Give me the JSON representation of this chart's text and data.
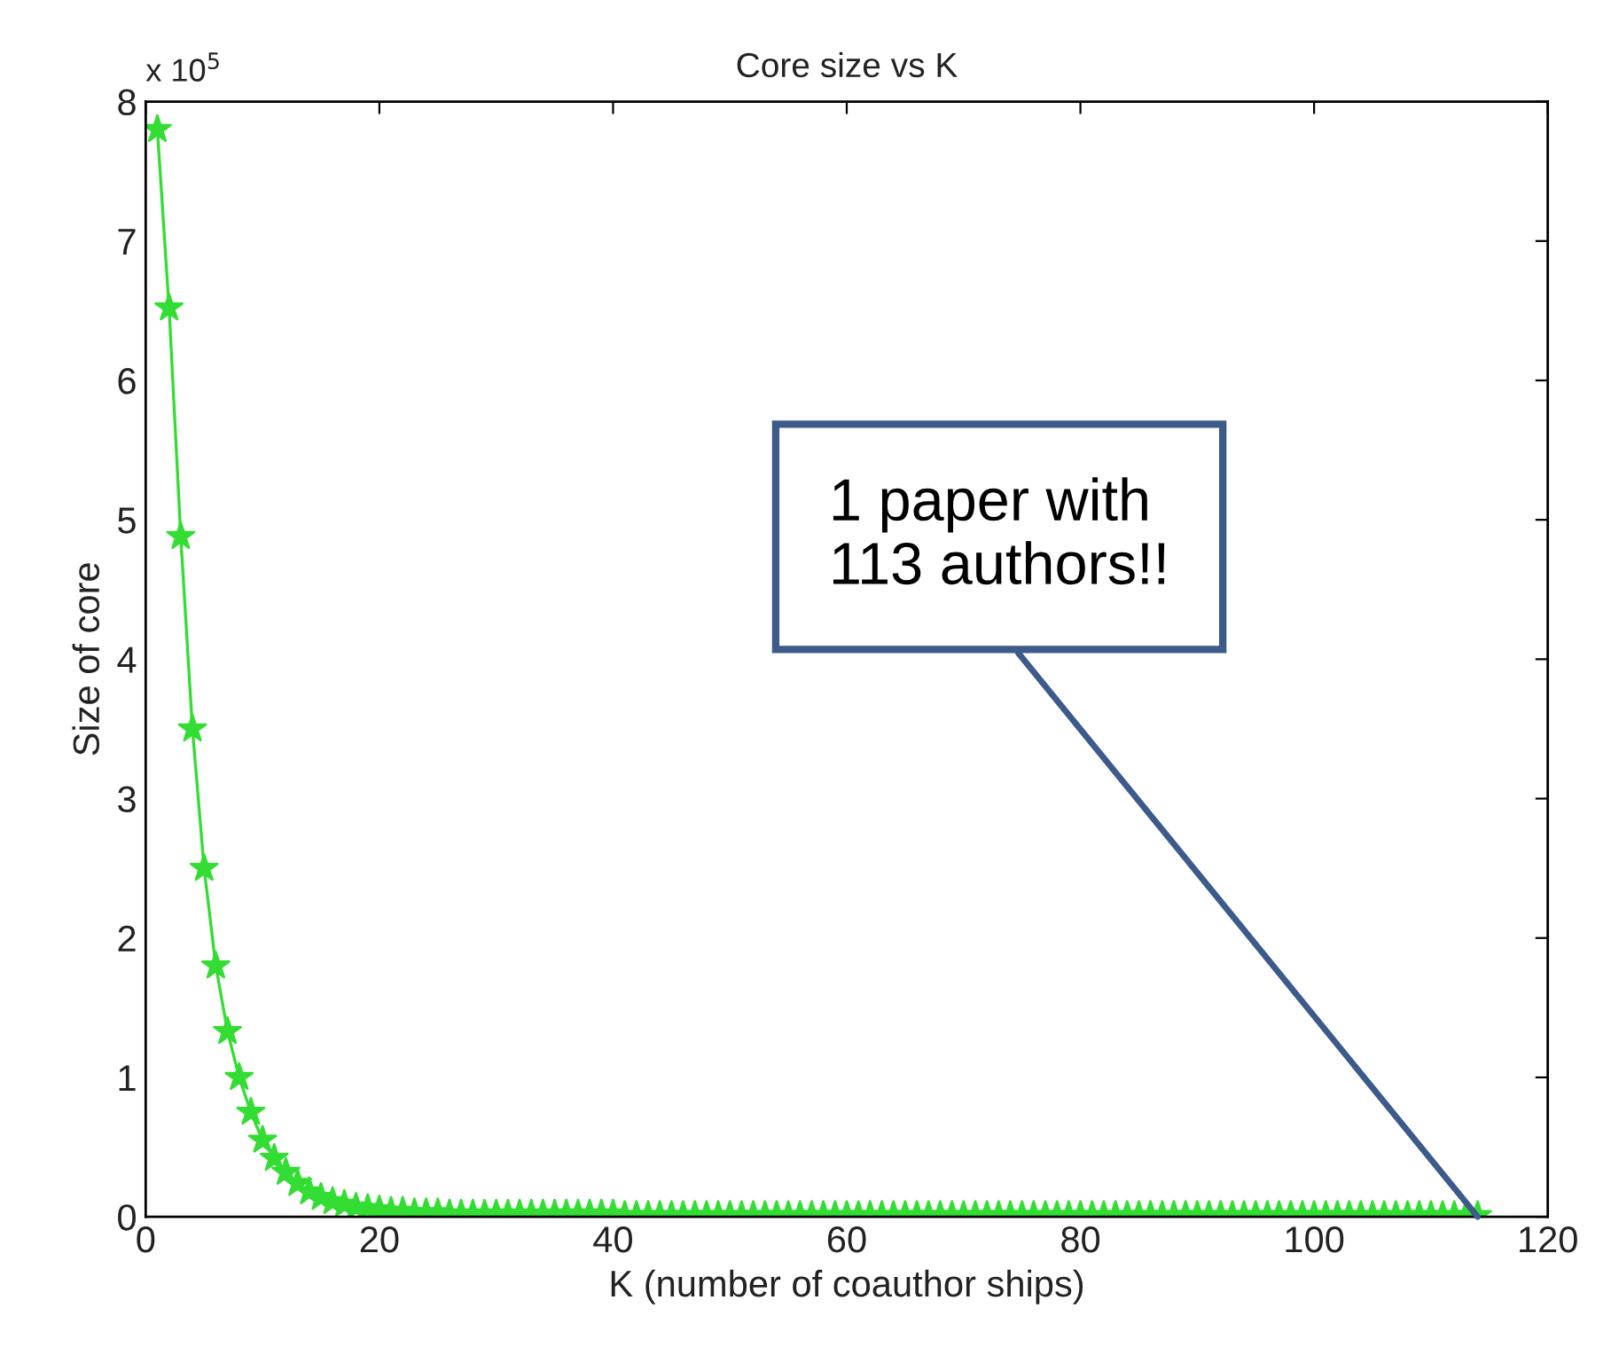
{
  "chart_data": {
    "type": "line",
    "title": "Core size vs K",
    "xlabel": "K (number of coauthor ships)",
    "ylabel": "Size of core",
    "x": [
      1,
      2,
      3,
      4,
      5,
      6,
      7,
      8,
      9,
      10,
      11,
      12,
      13,
      14,
      15,
      16,
      17,
      18,
      19,
      20,
      21,
      22,
      23,
      24,
      25,
      26,
      27,
      28,
      29,
      30,
      31,
      32,
      33,
      34,
      35,
      36,
      37,
      38,
      39,
      40,
      41,
      42,
      43,
      44,
      45,
      46,
      47,
      48,
      49,
      50,
      51,
      52,
      53,
      54,
      55,
      56,
      57,
      58,
      59,
      60,
      61,
      62,
      63,
      64,
      65,
      66,
      67,
      68,
      69,
      70,
      71,
      72,
      73,
      74,
      75,
      76,
      77,
      78,
      79,
      80,
      81,
      82,
      83,
      84,
      85,
      86,
      87,
      88,
      89,
      90,
      91,
      92,
      93,
      94,
      95,
      96,
      97,
      98,
      99,
      100,
      101,
      102,
      103,
      104,
      105,
      106,
      107,
      108,
      109,
      110,
      111,
      112,
      113,
      114
    ],
    "series": [
      {
        "color": "#33dd33",
        "values": [
          7.8,
          6.52,
          4.88,
          3.5,
          2.5,
          1.8,
          1.33,
          1.0,
          0.75,
          0.55,
          0.42,
          0.32,
          0.24,
          0.18,
          0.14,
          0.11,
          0.09,
          0.07,
          0.06,
          0.05,
          0.04,
          0.04,
          0.03,
          0.03,
          0.03,
          0.02,
          0.02,
          0.02,
          0.02,
          0.02,
          0.02,
          0.02,
          0.02,
          0.02,
          0.02,
          0.02,
          0.02,
          0.02,
          0.02,
          0.02,
          0.01,
          0.01,
          0.01,
          0.01,
          0.01,
          0.01,
          0.01,
          0.01,
          0.01,
          0.01,
          0.01,
          0.01,
          0.01,
          0.01,
          0.01,
          0.01,
          0.01,
          0.01,
          0.01,
          0.01,
          0.01,
          0.01,
          0.01,
          0.01,
          0.01,
          0.01,
          0.01,
          0.01,
          0.01,
          0.01,
          0.01,
          0.01,
          0.01,
          0.01,
          0.01,
          0.01,
          0.01,
          0.01,
          0.01,
          0.01,
          0.01,
          0.01,
          0.01,
          0.01,
          0.01,
          0.01,
          0.01,
          0.01,
          0.01,
          0.01,
          0.01,
          0.01,
          0.01,
          0.01,
          0.01,
          0.01,
          0.01,
          0.01,
          0.01,
          0.01,
          0.01,
          0.01,
          0.01,
          0.01,
          0.01,
          0.01,
          0.01,
          0.01,
          0.01,
          0.01,
          0.01,
          0.01,
          0.01,
          0.01
        ]
      }
    ],
    "marker": "star",
    "line_style": "solid",
    "grid": false,
    "xlim": [
      0,
      120
    ],
    "xticks": [
      0,
      20,
      40,
      60,
      80,
      100,
      120
    ],
    "ylim": [
      0,
      8
    ],
    "yticks": [
      0,
      1,
      2,
      3,
      4,
      5,
      6,
      7,
      8
    ],
    "annotations": [
      "x 10$^{5}$",
      {
        "text": "1 paper with\n113 authors!!",
        "x": 114,
        "y": 0
      }
    ]
  }
}
